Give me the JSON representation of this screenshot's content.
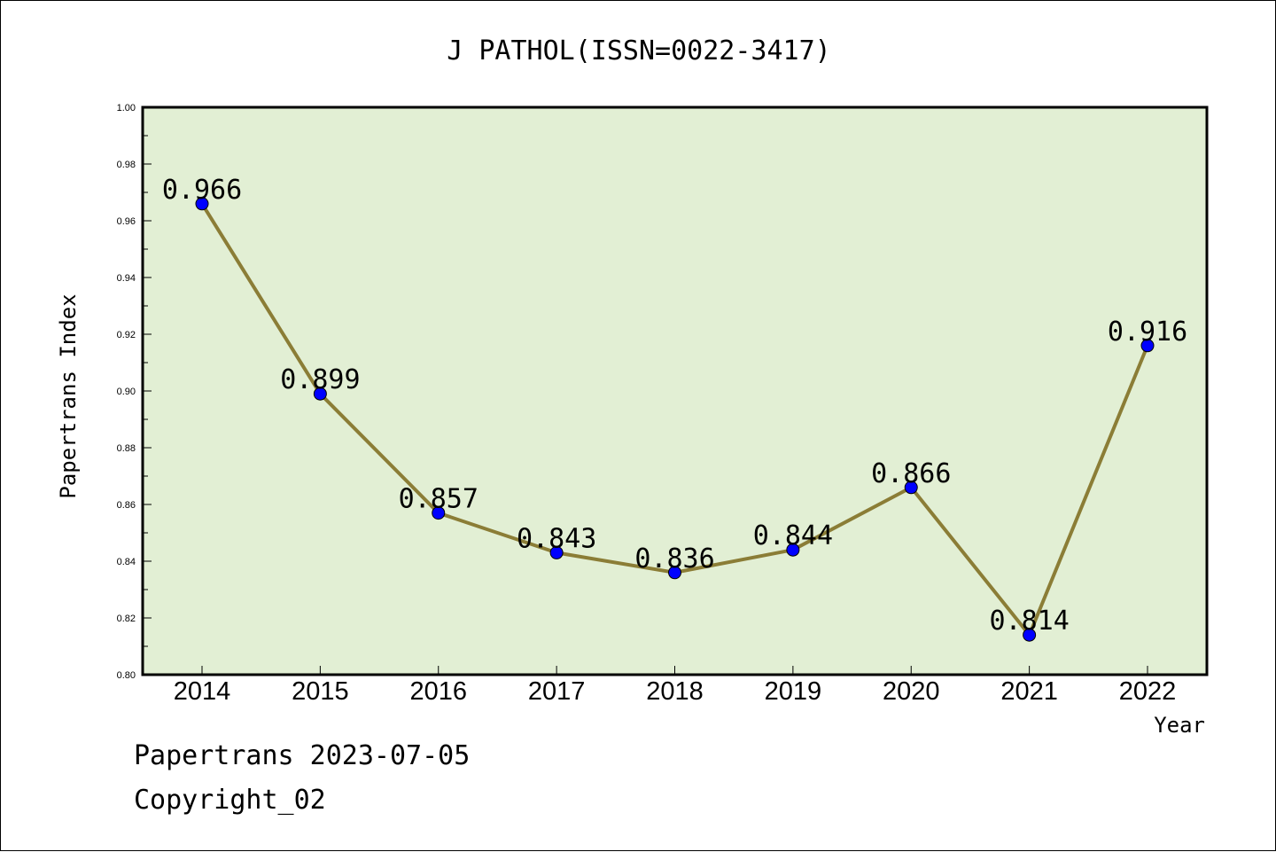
{
  "chart_data": {
    "type": "line",
    "title": "J PATHOL(ISSN=0022-3417)",
    "xlabel": "Year",
    "ylabel": "Papertrans Index",
    "categories": [
      "2014",
      "2015",
      "2016",
      "2017",
      "2018",
      "2019",
      "2020",
      "2021",
      "2022"
    ],
    "series": [
      {
        "values": [
          0.966,
          0.899,
          0.857,
          0.843,
          0.836,
          0.844,
          0.866,
          0.814,
          0.916
        ]
      }
    ],
    "data_labels": [
      "0.966",
      "0.899",
      "0.857",
      "0.843",
      "0.836",
      "0.844",
      "0.866",
      "0.814",
      "0.916"
    ],
    "ylim": [
      0.8,
      1.0
    ],
    "yticks": [
      "0.80",
      "0.82",
      "0.84",
      "0.86",
      "0.88",
      "0.90",
      "0.92",
      "0.94",
      "0.96",
      "0.98",
      "1.00"
    ],
    "grid": false,
    "colors": {
      "plot_bg": "#e2efd4",
      "line": "#8b7d36",
      "marker": "#0000ff"
    }
  },
  "footer": {
    "line1": "Papertrans 2023-07-05",
    "line2": "Copyright_02"
  }
}
